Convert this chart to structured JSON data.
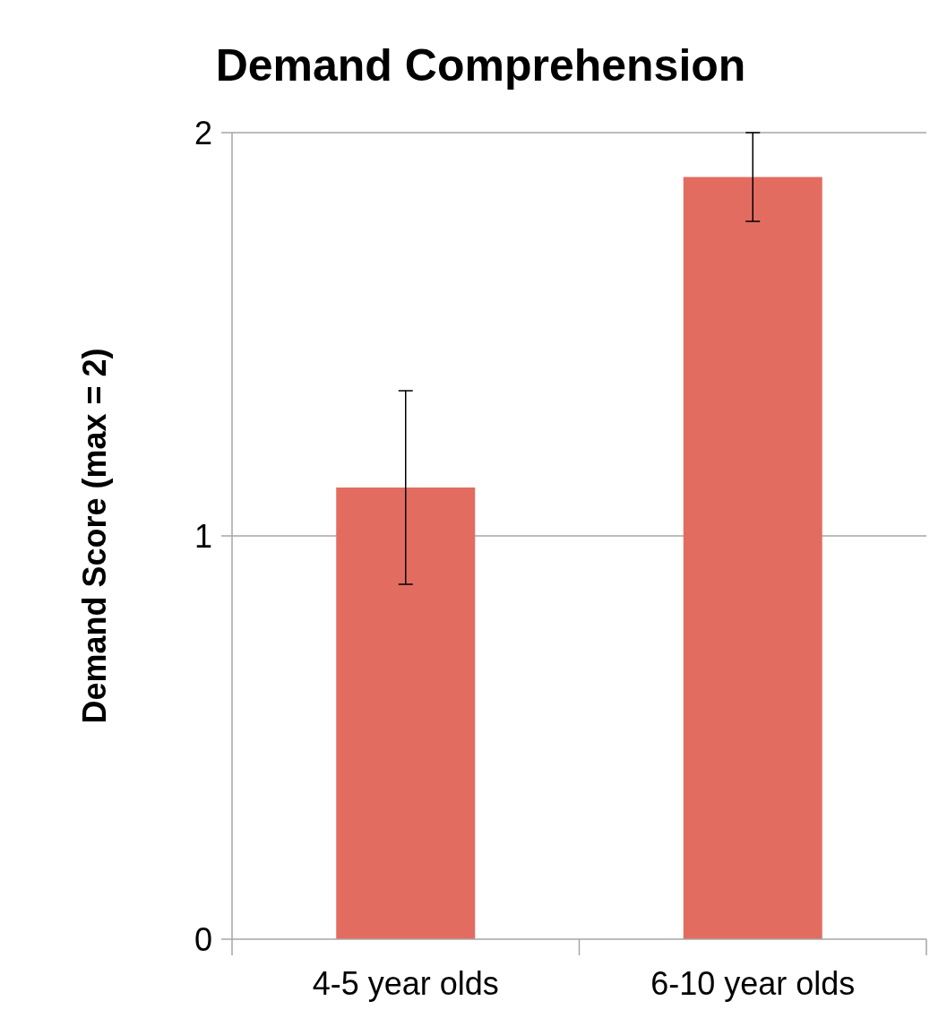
{
  "chart_data": {
    "type": "bar",
    "title": "Demand Comprehension",
    "ylabel": "Demand Score (max = 2)",
    "categories": [
      "4-5 year olds",
      "6-10 year olds"
    ],
    "values": [
      1.12,
      1.89
    ],
    "errors": [
      0.24,
      0.11
    ],
    "color": "#e36c60",
    "ylim": [
      0,
      2
    ],
    "yticks": [
      0,
      1,
      2
    ],
    "grid": "y"
  }
}
